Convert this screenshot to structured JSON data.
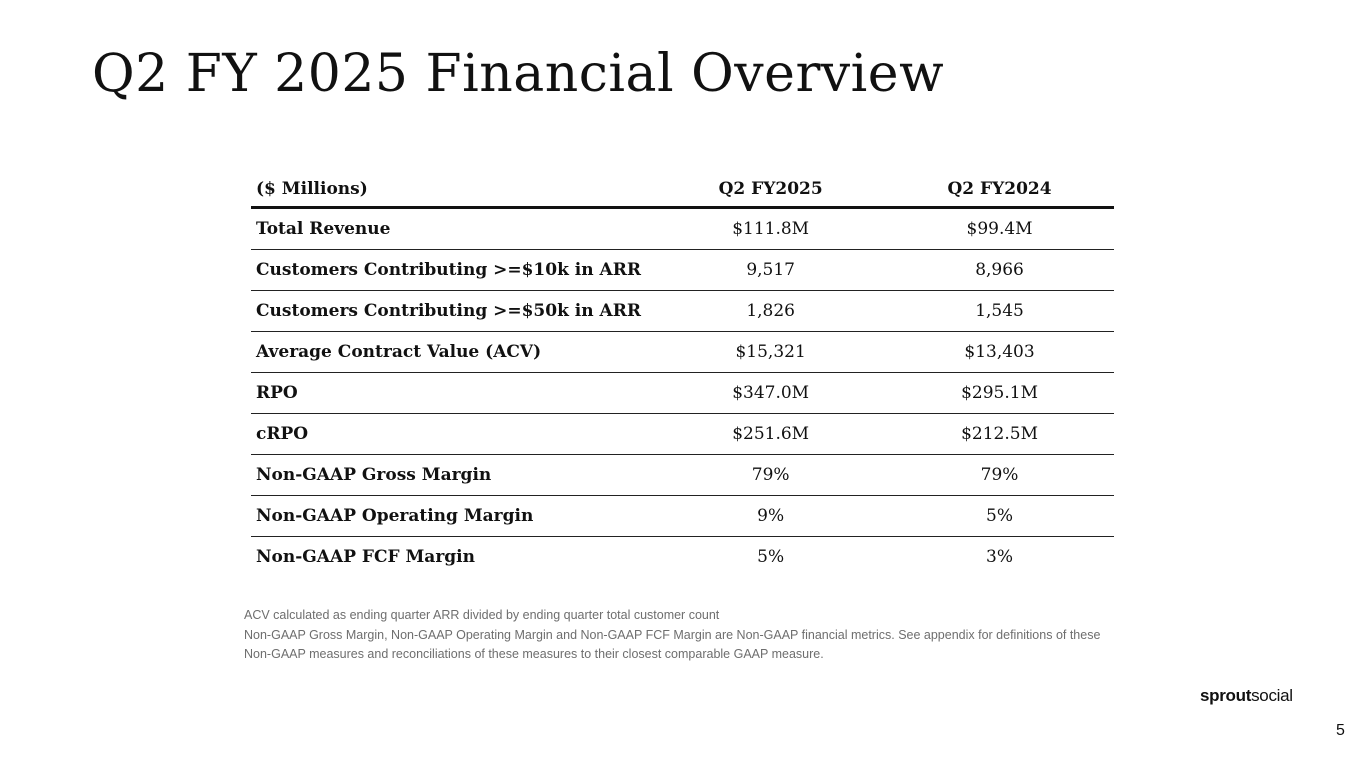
{
  "slide": {
    "title": "Q2 FY 2025 Financial Overview",
    "page_number": "5"
  },
  "table": {
    "headers": [
      "($ Millions)",
      "Q2 FY2025",
      "Q2 FY2024"
    ],
    "rows": [
      {
        "metric": "Total Revenue",
        "q2_fy2025": "$111.8M",
        "q2_fy2024": "$99.4M"
      },
      {
        "metric": "Customers Contributing >=$10k in ARR",
        "q2_fy2025": "9,517",
        "q2_fy2024": "8,966"
      },
      {
        "metric": "Customers Contributing >=$50k in ARR",
        "q2_fy2025": "1,826",
        "q2_fy2024": "1,545"
      },
      {
        "metric": "Average Contract Value (ACV)",
        "q2_fy2025": "$15,321",
        "q2_fy2024": "$13,403"
      },
      {
        "metric": "RPO",
        "q2_fy2025": "$347.0M",
        "q2_fy2024": "$295.1M"
      },
      {
        "metric": "cRPO",
        "q2_fy2025": "$251.6M",
        "q2_fy2024": "$212.5M"
      },
      {
        "metric": "Non-GAAP Gross Margin",
        "q2_fy2025": "79%",
        "q2_fy2024": "79%"
      },
      {
        "metric": "Non-GAAP Operating Margin",
        "q2_fy2025": "9%",
        "q2_fy2024": "5%"
      },
      {
        "metric": "Non-GAAP FCF Margin",
        "q2_fy2025": "5%",
        "q2_fy2024": "3%"
      }
    ]
  },
  "footnotes": [
    "ACV calculated as ending quarter ARR divided by ending quarter total customer count",
    "Non-GAAP Gross Margin, Non-GAAP Operating Margin and Non-GAAP FCF Margin are Non-GAAP financial metrics. See appendix for definitions of these Non-GAAP measures and reconciliations of these measures to their closest comparable GAAP measure."
  ],
  "logo": {
    "part1": "sprout",
    "part2": "social"
  }
}
